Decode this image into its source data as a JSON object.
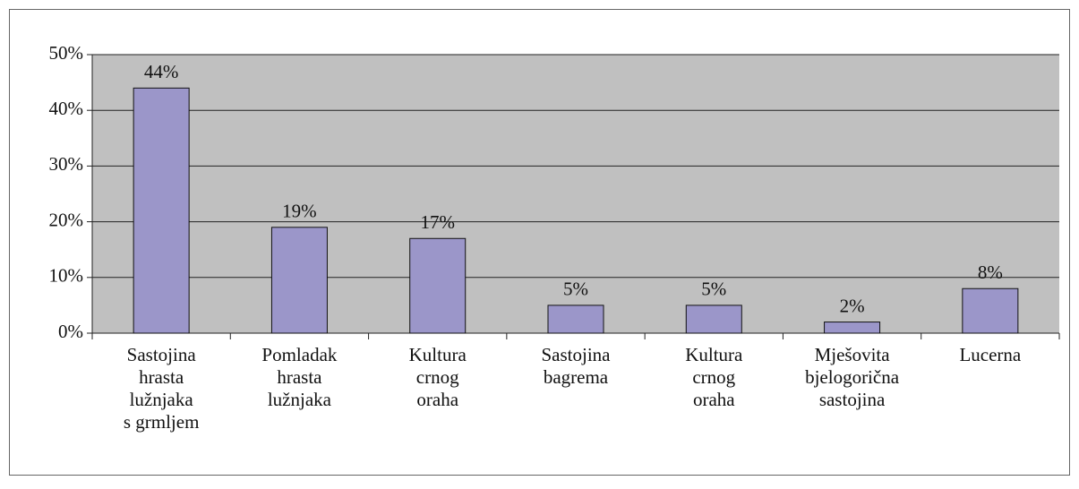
{
  "chart_data": {
    "type": "bar",
    "categories": [
      "Sastojina\nhrasta\nlužnjaka\ns grmljem",
      "Pomladak\nhrasta\nlužnjaka",
      "Kultura\ncrnog\noraha",
      "Sastojina\nbagrema",
      "Kultura\ncrnog\noraha",
      "Mješovita\nbjelogorična\nsastojina",
      "Lucerna"
    ],
    "values": [
      44,
      19,
      17,
      5,
      5,
      2,
      8
    ],
    "value_labels": [
      "44%",
      "19%",
      "17%",
      "5%",
      "5%",
      "2%",
      "8%"
    ],
    "color": "#9b96c9",
    "ylim": [
      0,
      50
    ],
    "yticks": [
      {
        "value": 0,
        "label": "0%"
      },
      {
        "value": 10,
        "label": "10%"
      },
      {
        "value": 20,
        "label": "20%"
      },
      {
        "value": 30,
        "label": "30%"
      },
      {
        "value": 40,
        "label": "40%"
      },
      {
        "value": 50,
        "label": "50%"
      }
    ],
    "grid": true
  }
}
